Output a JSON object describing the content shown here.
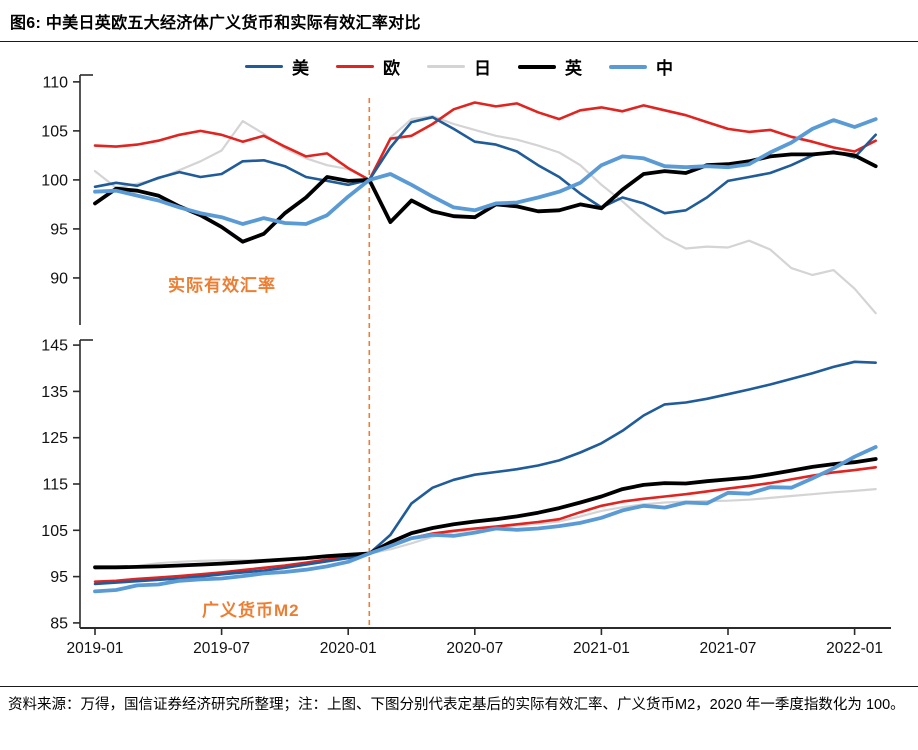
{
  "page": {
    "title": "图6: 中美日英欧五大经济体广义货币和实际有效汇率对比",
    "footer": "资料来源：万得，国信证券经济研究所整理；注：上图、下图分别代表定基后的实际有效汇率、广义货币M2，2020 年一季度指数化为 100。"
  },
  "colors": {
    "us": "#1F5C99",
    "eu": "#E02420",
    "jp": "#D4D4D4",
    "uk": "#000000",
    "cn": "#5B9BD5",
    "annotation": "#ED7D31",
    "axis": "#2b2b2b",
    "tick_label": "#111111"
  },
  "legend": [
    {
      "key": "us",
      "label": "美"
    },
    {
      "key": "eu",
      "label": "欧"
    },
    {
      "key": "jp",
      "label": "日"
    },
    {
      "key": "uk",
      "label": "英"
    },
    {
      "key": "cn",
      "label": "中"
    }
  ],
  "annotations": {
    "top_panel": "实际有效汇率",
    "bottom_panel": "广义货币M2"
  },
  "x_axis": {
    "tick_labels": [
      "2019-01",
      "2019-07",
      "2020-01",
      "2020-07",
      "2021-01",
      "2021-07",
      "2022-01"
    ],
    "tick_indices": [
      0,
      6,
      12,
      18,
      24,
      30,
      36
    ],
    "n_points": 38
  },
  "vline_index": 13,
  "chart_data": [
    {
      "type": "line",
      "name": "实际有效汇率",
      "yticks": [
        90,
        95,
        100,
        105,
        110
      ],
      "ylim": [
        85.2,
        110.7
      ],
      "series": [
        {
          "key": "jp",
          "name": "日",
          "width": 2.2,
          "values": [
            100.9,
            99.2,
            99.6,
            100.1,
            101.0,
            101.9,
            103.0,
            106.0,
            104.7,
            103.2,
            102.2,
            101.5,
            101.1,
            100.0,
            104.3,
            106.2,
            106.5,
            105.7,
            105.1,
            104.5,
            104.1,
            103.5,
            102.8,
            101.5,
            99.5,
            97.8,
            95.9,
            94.1,
            93.0,
            93.2,
            93.1,
            93.8,
            92.9,
            91.0,
            90.3,
            90.8,
            88.9,
            86.4
          ]
        },
        {
          "key": "eu",
          "name": "欧",
          "width": 2.6,
          "values": [
            103.5,
            103.4,
            103.6,
            104.0,
            104.6,
            105.0,
            104.6,
            103.9,
            104.5,
            103.4,
            102.4,
            102.7,
            101.2,
            100.0,
            104.2,
            104.5,
            105.7,
            107.2,
            107.9,
            107.5,
            107.8,
            106.9,
            106.2,
            107.1,
            107.4,
            107.0,
            107.6,
            107.1,
            106.6,
            105.9,
            105.2,
            104.9,
            105.1,
            104.4,
            103.9,
            103.3,
            102.9,
            104.0
          ]
        },
        {
          "key": "us",
          "name": "美",
          "width": 2.6,
          "values": [
            99.3,
            99.7,
            99.4,
            100.2,
            100.8,
            100.3,
            100.6,
            101.9,
            102.0,
            101.4,
            100.3,
            99.9,
            99.5,
            100.0,
            103.3,
            105.9,
            106.4,
            105.2,
            103.9,
            103.6,
            102.9,
            101.5,
            100.3,
            98.6,
            97.2,
            98.2,
            97.6,
            96.6,
            96.9,
            98.2,
            99.9,
            100.3,
            100.7,
            101.5,
            102.5,
            102.9,
            102.3,
            104.6
          ]
        },
        {
          "key": "uk",
          "name": "英",
          "width": 3.8,
          "values": [
            97.6,
            99.1,
            98.9,
            98.4,
            97.3,
            96.4,
            95.2,
            93.7,
            94.5,
            96.6,
            98.2,
            100.3,
            99.9,
            100.0,
            95.7,
            97.9,
            96.8,
            96.3,
            96.2,
            97.5,
            97.3,
            96.8,
            96.9,
            97.5,
            97.1,
            99.0,
            100.6,
            100.9,
            100.7,
            101.5,
            101.6,
            101.9,
            102.4,
            102.6,
            102.6,
            102.8,
            102.5,
            101.4
          ]
        },
        {
          "key": "cn",
          "name": "中",
          "width": 3.8,
          "values": [
            98.8,
            98.9,
            98.4,
            97.9,
            97.2,
            96.6,
            96.2,
            95.5,
            96.1,
            95.6,
            95.5,
            96.4,
            98.3,
            100.0,
            100.6,
            99.5,
            98.3,
            97.2,
            96.9,
            97.6,
            97.7,
            98.2,
            98.8,
            99.7,
            101.5,
            102.4,
            102.2,
            101.4,
            101.3,
            101.4,
            101.3,
            101.6,
            102.8,
            103.8,
            105.2,
            106.1,
            105.4,
            106.2
          ]
        }
      ]
    },
    {
      "type": "line",
      "name": "广义货币M2",
      "yticks": [
        85,
        95,
        105,
        115,
        125,
        135,
        145
      ],
      "ylim": [
        83.9,
        146.1
      ],
      "series": [
        {
          "key": "jp",
          "name": "日",
          "width": 2.2,
          "values": [
            96.7,
            96.9,
            97.3,
            97.9,
            98.2,
            98.4,
            98.5,
            98.5,
            98.6,
            98.8,
            99.1,
            99.4,
            99.7,
            100.0,
            100.9,
            102.2,
            103.6,
            104.6,
            105.2,
            105.6,
            106.0,
            106.4,
            106.9,
            108.0,
            109.2,
            110.0,
            110.6,
            111.0,
            111.2,
            111.3,
            111.4,
            111.6,
            112.0,
            112.4,
            112.8,
            113.2,
            113.5,
            113.9
          ]
        },
        {
          "key": "eu",
          "name": "欧",
          "width": 2.6,
          "values": [
            93.9,
            94.1,
            94.5,
            94.8,
            95.1,
            95.5,
            95.9,
            96.4,
            96.9,
            97.4,
            98.0,
            98.7,
            99.3,
            100.0,
            101.8,
            103.3,
            104.3,
            104.9,
            105.4,
            105.8,
            106.3,
            106.8,
            107.4,
            108.9,
            110.3,
            111.2,
            111.8,
            112.3,
            112.8,
            113.4,
            114.0,
            114.6,
            115.2,
            116.0,
            116.8,
            117.5,
            118.0,
            118.6
          ]
        },
        {
          "key": "us",
          "name": "美",
          "width": 2.6,
          "values": [
            93.4,
            93.7,
            94.0,
            94.3,
            94.6,
            95.0,
            95.5,
            95.9,
            96.3,
            96.9,
            97.6,
            98.3,
            99.0,
            100.0,
            104.0,
            110.8,
            114.2,
            115.9,
            117.0,
            117.6,
            118.2,
            119.0,
            120.1,
            121.8,
            123.8,
            126.5,
            129.8,
            132.2,
            132.6,
            133.4,
            134.4,
            135.4,
            136.5,
            137.7,
            138.9,
            140.3,
            141.4,
            141.2
          ]
        },
        {
          "key": "uk",
          "name": "英",
          "width": 3.8,
          "values": [
            97.0,
            97.0,
            97.1,
            97.2,
            97.4,
            97.6,
            97.8,
            98.1,
            98.4,
            98.7,
            99.0,
            99.4,
            99.7,
            100.0,
            102.4,
            104.4,
            105.5,
            106.3,
            106.9,
            107.4,
            108.0,
            108.8,
            109.8,
            111.0,
            112.3,
            113.9,
            114.8,
            115.2,
            115.1,
            115.6,
            116.0,
            116.4,
            117.1,
            117.9,
            118.7,
            119.3,
            119.7,
            120.4
          ]
        },
        {
          "key": "cn",
          "name": "中",
          "width": 3.8,
          "values": [
            91.8,
            92.1,
            93.1,
            93.3,
            94.1,
            94.4,
            94.6,
            95.1,
            95.7,
            96.0,
            96.5,
            97.2,
            98.2,
            100.0,
            101.6,
            103.3,
            104.0,
            103.8,
            104.5,
            105.4,
            105.1,
            105.4,
            105.9,
            106.6,
            107.7,
            109.3,
            110.3,
            109.9,
            111.0,
            110.8,
            113.1,
            112.9,
            114.3,
            114.2,
            116.2,
            118.4,
            120.9,
            123.0
          ]
        }
      ]
    }
  ]
}
